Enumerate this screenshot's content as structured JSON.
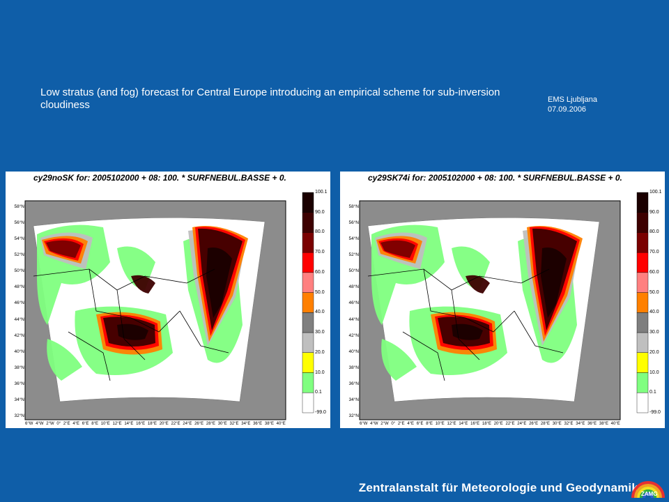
{
  "slide": {
    "title": "Low stratus (and fog) forecast for Central Europe introducing an empirical scheme for sub-inversion cloudiness",
    "event": "EMS Ljubljana",
    "date": "07.09.2006",
    "footer": "Zentralanstalt für Meteorologie und Geodynamik",
    "logo_text": "ZAMG"
  },
  "maps": [
    {
      "title": "cy29noSK for: 2005102000 + 08: 100. * SURFNEBUL.BASSE + 0."
    },
    {
      "title": "cy29SK74i for: 2005102000 + 08: 100. * SURFNEBUL.BASSE + 0."
    }
  ],
  "axes": {
    "latitudes": [
      "58°N",
      "56°N",
      "54°N",
      "52°N",
      "50°N",
      "48°N",
      "46°N",
      "44°N",
      "42°N",
      "40°N",
      "38°N",
      "36°N",
      "34°N",
      "32°N"
    ],
    "longitudes": [
      "6°W",
      "4°W",
      "2°W",
      "0°",
      "2°E",
      "4°E",
      "6°E",
      "8°E",
      "10°E",
      "12°E",
      "14°E",
      "16°E",
      "18°E",
      "20°E",
      "22°E",
      "24°E",
      "26°E",
      "28°E",
      "30°E",
      "32°E",
      "34°E",
      "36°E",
      "38°E",
      "40°E"
    ]
  },
  "colorbar": {
    "labels": [
      "100.1",
      "90.0",
      "80.0",
      "70.0",
      "60.0",
      "50.0",
      "40.0",
      "30.0",
      "20.0",
      "10.0",
      "0.1",
      "-99.0"
    ],
    "colors": [
      "#1a0000",
      "#3d0000",
      "#7a0000",
      "#ff0000",
      "#ff8080",
      "#ff8000",
      "#7f7f7f",
      "#bfbfbf",
      "#ffff00",
      "#80ff80",
      "#ffffff"
    ]
  }
}
